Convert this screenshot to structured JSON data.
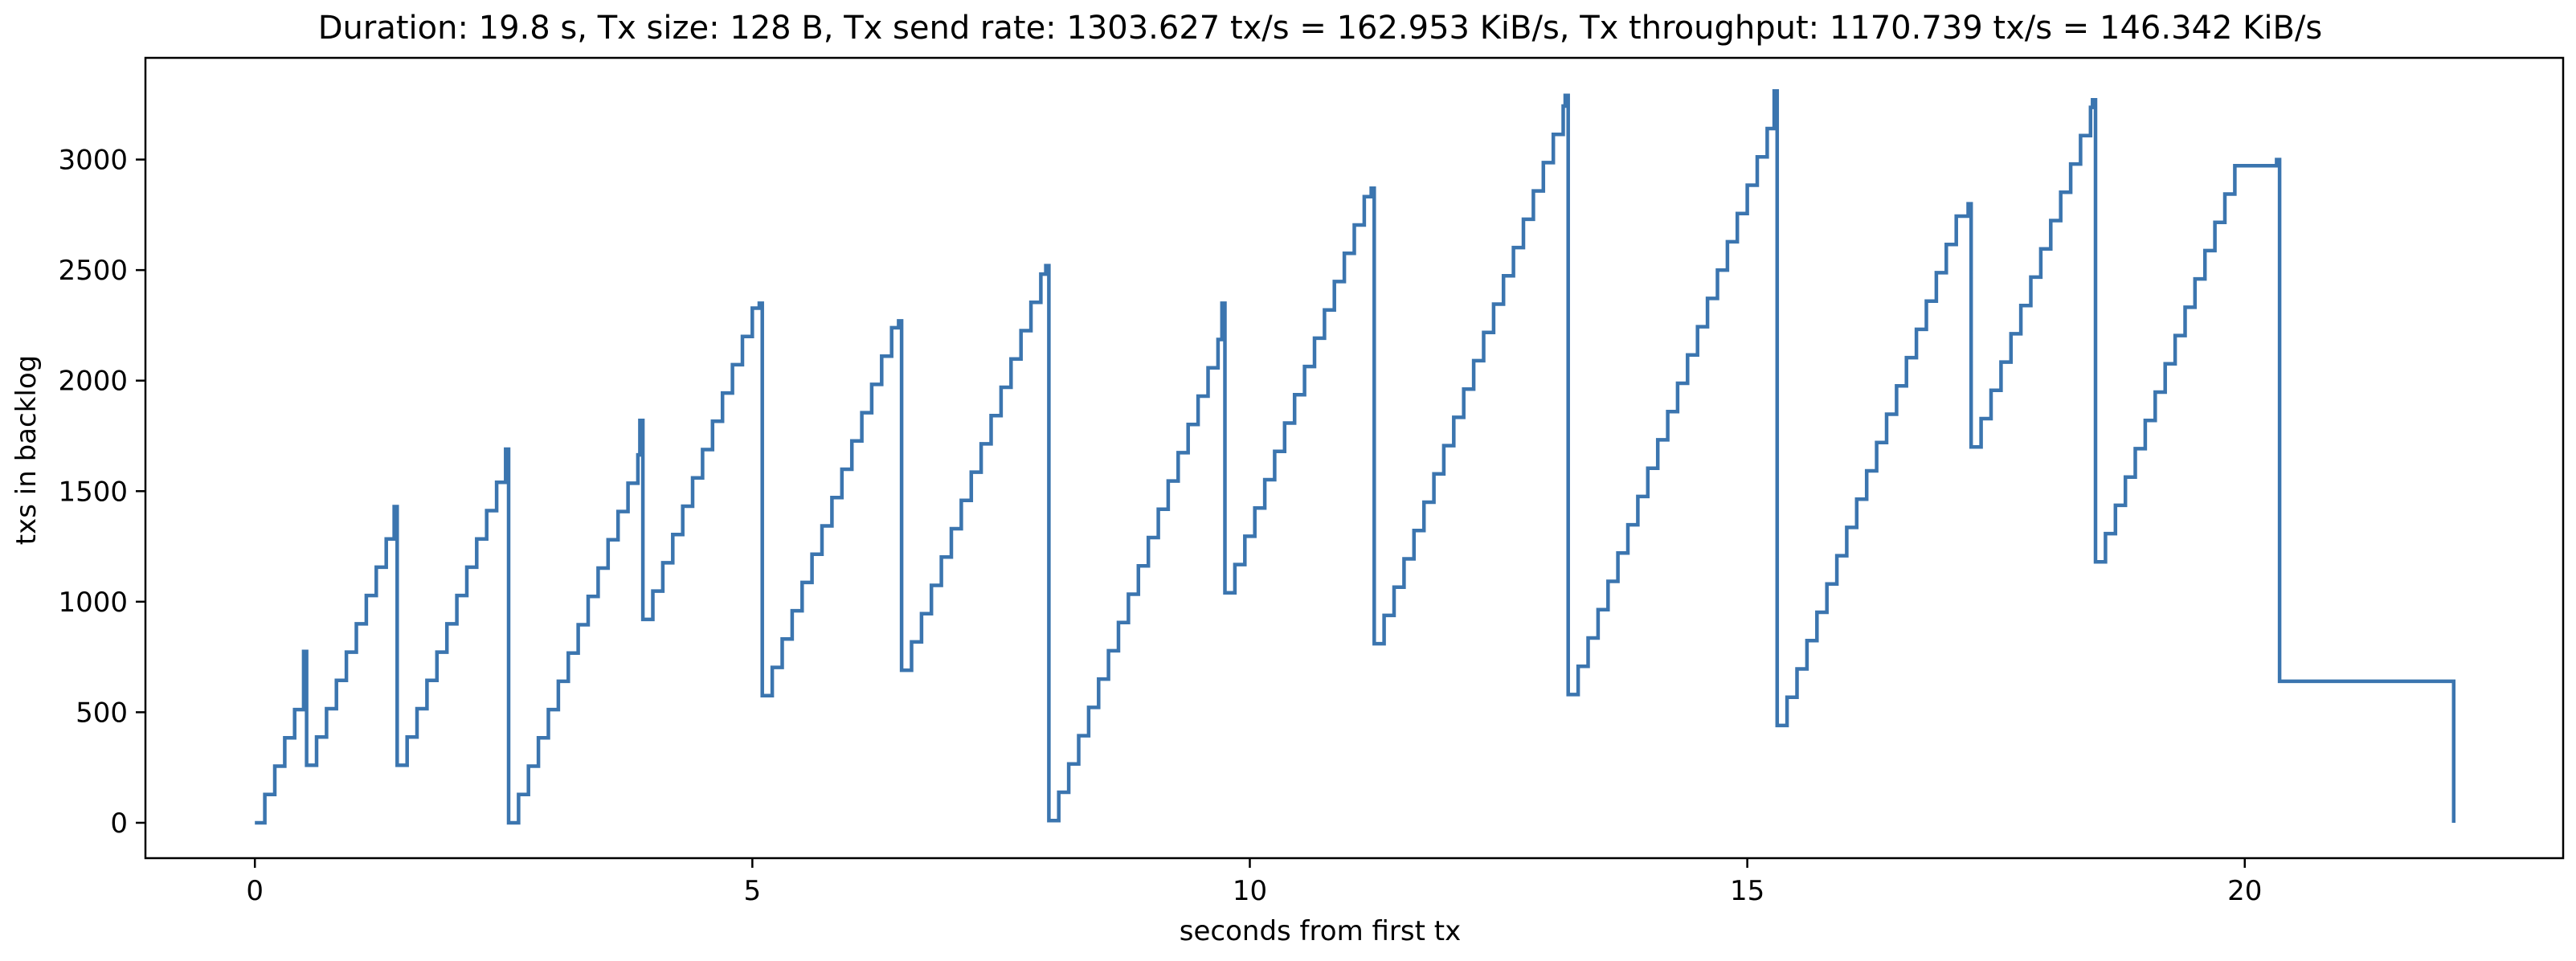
{
  "colors": {
    "series": "#3b75af",
    "axes": "#000000",
    "background": "#ffffff"
  },
  "chart_data": {
    "type": "line",
    "title": "Duration: 19.8 s, Tx size: 128 B, Tx send rate: 1303.627 tx/s = 162.953 KiB/s, Tx throughput: 1170.739 tx/s = 146.342 KiB/s",
    "xlabel": "seconds from first tx",
    "ylabel": "txs in backlog",
    "xlim": [
      -1.1,
      23.2
    ],
    "ylim": [
      -160,
      3460
    ],
    "xticks": [
      0,
      5,
      10,
      15,
      20
    ],
    "yticks": [
      0,
      500,
      1000,
      1500,
      2000,
      2500,
      3000
    ],
    "grid": false,
    "legend": "none",
    "series": [
      {
        "cycles": [
          {
            "start": 0.0,
            "from": 0,
            "step": 128,
            "interval": 0.1,
            "drop_at": 0.52,
            "peak": 775,
            "drop_to": 260
          },
          {
            "start": 0.52,
            "from": 260,
            "step": 128,
            "interval": 0.1,
            "drop_at": 1.43,
            "peak": 1430,
            "drop_to": 260
          },
          {
            "start": 1.43,
            "from": 260,
            "step": 128,
            "interval": 0.1,
            "drop_at": 2.55,
            "peak": 1690,
            "drop_to": 0
          },
          {
            "start": 2.55,
            "from": 0,
            "step": 128,
            "interval": 0.1,
            "drop_at": 3.9,
            "peak": 1820,
            "drop_to": 920
          },
          {
            "start": 3.9,
            "from": 920,
            "step": 128,
            "interval": 0.1,
            "drop_at": 5.1,
            "peak": 2350,
            "drop_to": 575
          },
          {
            "start": 5.1,
            "from": 575,
            "step": 128,
            "interval": 0.1,
            "drop_at": 6.5,
            "peak": 2270,
            "drop_to": 690
          },
          {
            "start": 6.5,
            "from": 690,
            "step": 128,
            "interval": 0.1,
            "drop_at": 7.98,
            "peak": 2520,
            "drop_to": 10
          },
          {
            "start": 7.98,
            "from": 10,
            "step": 128,
            "interval": 0.1,
            "drop_at": 9.75,
            "peak": 2350,
            "drop_to": 1040
          },
          {
            "start": 9.75,
            "from": 1040,
            "step": 128,
            "interval": 0.1,
            "drop_at": 11.25,
            "peak": 2870,
            "drop_to": 810
          },
          {
            "start": 11.25,
            "from": 810,
            "step": 128,
            "interval": 0.1,
            "drop_at": 13.2,
            "peak": 3290,
            "drop_to": 580
          },
          {
            "start": 13.2,
            "from": 580,
            "step": 128,
            "interval": 0.1,
            "drop_at": 15.3,
            "peak": 3310,
            "drop_to": 440
          },
          {
            "start": 15.3,
            "from": 440,
            "step": 128,
            "interval": 0.1,
            "drop_at": 17.25,
            "peak": 2800,
            "drop_to": 1700
          },
          {
            "start": 17.25,
            "from": 1700,
            "step": 128,
            "interval": 0.1,
            "drop_at": 18.5,
            "peak": 3270,
            "drop_to": 1180
          },
          {
            "start": 18.5,
            "from": 1180,
            "step": 128,
            "interval": 0.1,
            "drop_at": 20.35,
            "peak": 3000,
            "drop_to": 640
          }
        ],
        "tail": [
          [
            22.1,
            640
          ],
          [
            22.1,
            0
          ]
        ]
      }
    ]
  }
}
